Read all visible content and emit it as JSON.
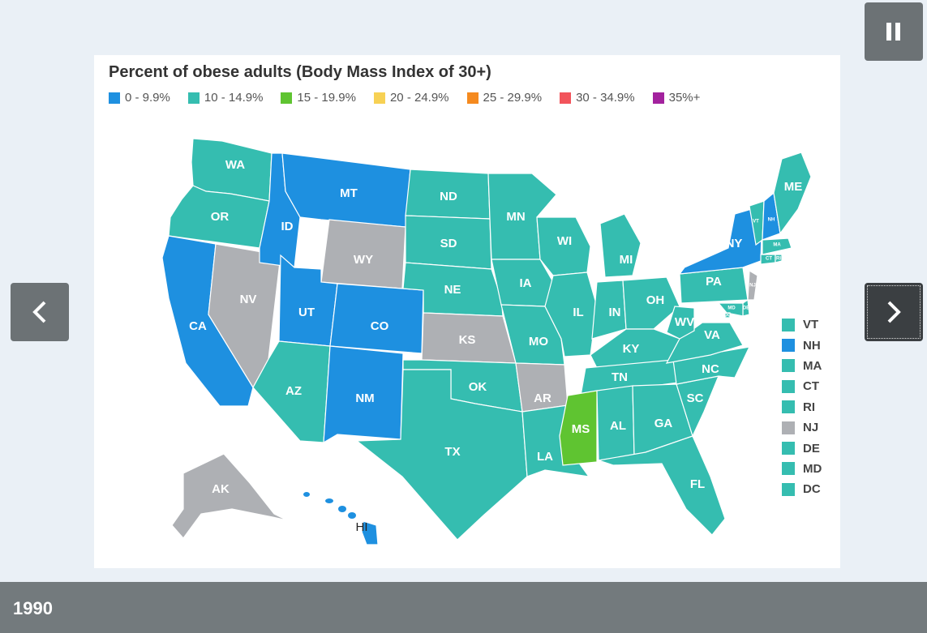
{
  "map": {
    "title": "Percent of obese adults (Body Mass Index of 30+)",
    "legend": [
      {
        "label": "0 - 9.9%",
        "color": "#1e90e0"
      },
      {
        "label": "10 - 14.9%",
        "color": "#35bdb0"
      },
      {
        "label": "15 - 19.9%",
        "color": "#5fc431"
      },
      {
        "label": "20 - 24.9%",
        "color": "#f7d154"
      },
      {
        "label": "25 - 29.9%",
        "color": "#f58a1f"
      },
      {
        "label": "30 - 34.9%",
        "color": "#f2545b"
      },
      {
        "label": "35%+",
        "color": "#a3229e"
      }
    ],
    "no_data_color": "#aeb0b4",
    "states": {
      "WA": "10 - 14.9%",
      "OR": "10 - 14.9%",
      "CA": "0 - 9.9%",
      "NV": "no data",
      "ID": "0 - 9.9%",
      "MT": "0 - 9.9%",
      "WY": "no data",
      "UT": "0 - 9.9%",
      "CO": "0 - 9.9%",
      "AZ": "10 - 14.9%",
      "NM": "0 - 9.9%",
      "ND": "10 - 14.9%",
      "SD": "10 - 14.9%",
      "NE": "10 - 14.9%",
      "KS": "no data",
      "OK": "10 - 14.9%",
      "TX": "10 - 14.9%",
      "MN": "10 - 14.9%",
      "IA": "10 - 14.9%",
      "MO": "10 - 14.9%",
      "AR": "no data",
      "LA": "10 - 14.9%",
      "WI": "10 - 14.9%",
      "IL": "10 - 14.9%",
      "MI": "10 - 14.9%",
      "IN": "10 - 14.9%",
      "OH": "10 - 14.9%",
      "KY": "10 - 14.9%",
      "TN": "10 - 14.9%",
      "MS": "15 - 19.9%",
      "AL": "10 - 14.9%",
      "GA": "10 - 14.9%",
      "FL": "10 - 14.9%",
      "SC": "10 - 14.9%",
      "NC": "10 - 14.9%",
      "VA": "10 - 14.9%",
      "WV": "10 - 14.9%",
      "PA": "10 - 14.9%",
      "NY": "0 - 9.9%",
      "VT": "10 - 14.9%",
      "NH": "0 - 9.9%",
      "ME": "10 - 14.9%",
      "MA": "10 - 14.9%",
      "CT": "10 - 14.9%",
      "RI": "10 - 14.9%",
      "NJ": "no data",
      "DE": "10 - 14.9%",
      "MD": "10 - 14.9%",
      "DC": "10 - 14.9%",
      "AK": "no data",
      "HI": "0 - 9.9%"
    },
    "side_legend": [
      "VT",
      "NH",
      "MA",
      "CT",
      "RI",
      "NJ",
      "DE",
      "MD",
      "DC"
    ]
  },
  "controls": {
    "pause_icon": "pause-icon",
    "prev_icon": "chevron-left-icon",
    "next_icon": "chevron-right-icon"
  },
  "caption": {
    "year": "1990"
  }
}
